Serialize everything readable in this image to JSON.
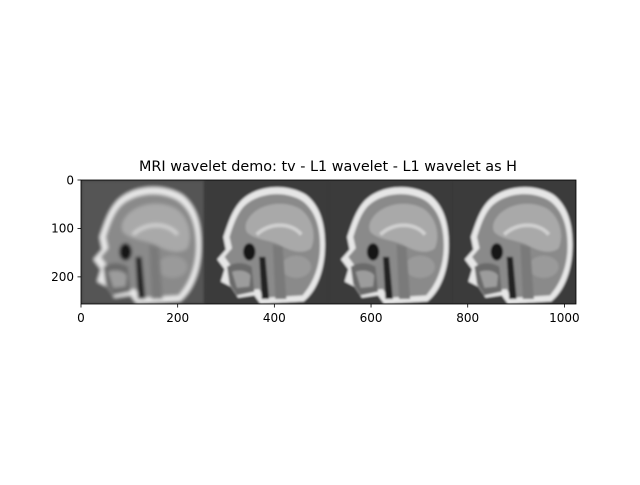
{
  "chart_data": {
    "type": "image",
    "title": "MRI wavelet demo: tv - L1 wavelet - L1 wavelet as H",
    "xlabel": "",
    "ylabel": "",
    "xlim": [
      0,
      1024
    ],
    "ylim": [
      256,
      0
    ],
    "xticks": [
      0,
      200,
      400,
      600,
      800,
      1000
    ],
    "yticks": [
      0,
      100,
      200
    ],
    "panels": [
      {
        "name": "panel-1",
        "x_start": 0,
        "x_end": 256
      },
      {
        "name": "panel-2",
        "x_start": 256,
        "x_end": 512
      },
      {
        "name": "panel-3",
        "x_start": 512,
        "x_end": 768
      },
      {
        "name": "panel-4",
        "x_start": 768,
        "x_end": 1024
      }
    ],
    "colormap": "gray",
    "colors": {
      "background": "#3a3a3a",
      "tissue": "#8a8a8a",
      "bright": "#e6e6e6",
      "dark": "#151515"
    }
  }
}
